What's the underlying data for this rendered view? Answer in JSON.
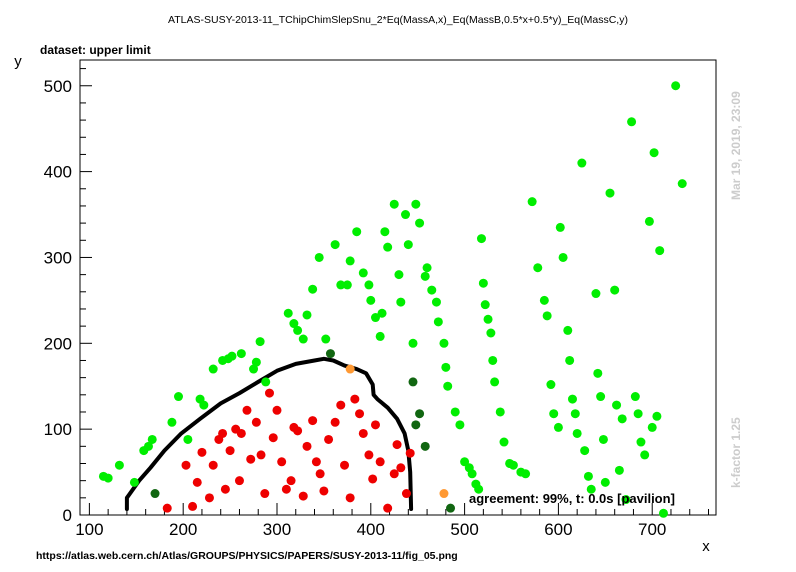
{
  "chart_data": {
    "type": "scatter",
    "title": "ATLAS-SUSY-2013-11_TChipChimSlepSnu_2*Eq(MassA,x)_Eq(MassB,0.5*x+0.5*y)_Eq(MassC,y)",
    "subtitle": "dataset: upper limit",
    "xlabel": "x",
    "ylabel": "y",
    "xlim": [
      90,
      768
    ],
    "ylim": [
      0,
      530
    ],
    "xticks": [
      100,
      200,
      300,
      400,
      500,
      600,
      700
    ],
    "yticks": [
      0,
      100,
      200,
      300,
      400,
      500
    ],
    "grid": false,
    "side_labels": {
      "timestamp": "Mar 19, 2019, 23:09",
      "kfactor": "k-factor 1.25"
    },
    "footer": "https://atlas.web.cern.ch/Atlas/GROUPS/PHYSICS/PAPERS/SUSY-2013-11/fig_05.png",
    "annotation": "agreement: 99%, t: 0.0s [pavilion]",
    "colors": {
      "allowed": "#00ee00",
      "excluded": "#ee0000",
      "allowed_disagree": "#116611",
      "excluded_disagree": "#ff9933",
      "contour": "#000000"
    },
    "series": [
      {
        "name": "allowed",
        "points": [
          [
            115,
            45
          ],
          [
            120,
            43
          ],
          [
            132,
            58
          ],
          [
            148,
            38
          ],
          [
            158,
            75
          ],
          [
            163,
            80
          ],
          [
            167,
            88
          ],
          [
            188,
            108
          ],
          [
            195,
            138
          ],
          [
            205,
            88
          ],
          [
            218,
            135
          ],
          [
            222,
            128
          ],
          [
            232,
            170
          ],
          [
            242,
            180
          ],
          [
            248,
            182
          ],
          [
            252,
            185
          ],
          [
            262,
            188
          ],
          [
            275,
            170
          ],
          [
            278,
            178
          ],
          [
            282,
            202
          ],
          [
            288,
            155
          ],
          [
            312,
            235
          ],
          [
            318,
            223
          ],
          [
            322,
            215
          ],
          [
            328,
            205
          ],
          [
            332,
            233
          ],
          [
            338,
            263
          ],
          [
            345,
            300
          ],
          [
            352,
            205
          ],
          [
            362,
            315
          ],
          [
            368,
            268
          ],
          [
            375,
            268
          ],
          [
            378,
            296
          ],
          [
            385,
            330
          ],
          [
            392,
            282
          ],
          [
            398,
            268
          ],
          [
            400,
            250
          ],
          [
            405,
            230
          ],
          [
            410,
            208
          ],
          [
            412,
            235
          ],
          [
            415,
            330
          ],
          [
            418,
            312
          ],
          [
            425,
            362
          ],
          [
            430,
            280
          ],
          [
            432,
            248
          ],
          [
            437,
            350
          ],
          [
            440,
            315
          ],
          [
            445,
            200
          ],
          [
            448,
            362
          ],
          [
            452,
            340
          ],
          [
            458,
            278
          ],
          [
            460,
            288
          ],
          [
            465,
            262
          ],
          [
            470,
            248
          ],
          [
            472,
            225
          ],
          [
            478,
            200
          ],
          [
            480,
            172
          ],
          [
            482,
            150
          ],
          [
            490,
            120
          ],
          [
            495,
            105
          ],
          [
            500,
            62
          ],
          [
            505,
            55
          ],
          [
            508,
            48
          ],
          [
            512,
            36
          ],
          [
            515,
            30
          ],
          [
            518,
            322
          ],
          [
            520,
            270
          ],
          [
            522,
            245
          ],
          [
            525,
            228
          ],
          [
            528,
            212
          ],
          [
            530,
            180
          ],
          [
            532,
            155
          ],
          [
            538,
            120
          ],
          [
            542,
            85
          ],
          [
            548,
            60
          ],
          [
            552,
            58
          ],
          [
            560,
            50
          ],
          [
            565,
            48
          ],
          [
            572,
            365
          ],
          [
            578,
            288
          ],
          [
            585,
            250
          ],
          [
            588,
            232
          ],
          [
            592,
            152
          ],
          [
            595,
            118
          ],
          [
            600,
            102
          ],
          [
            602,
            335
          ],
          [
            605,
            300
          ],
          [
            610,
            215
          ],
          [
            612,
            180
          ],
          [
            615,
            135
          ],
          [
            618,
            118
          ],
          [
            620,
            95
          ],
          [
            625,
            410
          ],
          [
            628,
            75
          ],
          [
            632,
            45
          ],
          [
            635,
            30
          ],
          [
            640,
            258
          ],
          [
            642,
            165
          ],
          [
            645,
            138
          ],
          [
            648,
            88
          ],
          [
            650,
            38
          ],
          [
            655,
            375
          ],
          [
            660,
            262
          ],
          [
            662,
            128
          ],
          [
            665,
            52
          ],
          [
            668,
            112
          ],
          [
            672,
            18
          ],
          [
            678,
            458
          ],
          [
            682,
            138
          ],
          [
            685,
            118
          ],
          [
            688,
            85
          ],
          [
            692,
            70
          ],
          [
            697,
            342
          ],
          [
            700,
            102
          ],
          [
            702,
            422
          ],
          [
            705,
            115
          ],
          [
            708,
            308
          ],
          [
            712,
            2
          ],
          [
            725,
            500
          ],
          [
            732,
            386
          ]
        ]
      },
      {
        "name": "excluded",
        "points": [
          [
            183,
            8
          ],
          [
            203,
            58
          ],
          [
            210,
            10
          ],
          [
            215,
            38
          ],
          [
            220,
            73
          ],
          [
            228,
            20
          ],
          [
            232,
            58
          ],
          [
            238,
            88
          ],
          [
            242,
            95
          ],
          [
            245,
            30
          ],
          [
            250,
            75
          ],
          [
            256,
            100
          ],
          [
            260,
            40
          ],
          [
            262,
            95
          ],
          [
            268,
            122
          ],
          [
            272,
            65
          ],
          [
            278,
            108
          ],
          [
            283,
            70
          ],
          [
            287,
            25
          ],
          [
            292,
            142
          ],
          [
            296,
            90
          ],
          [
            300,
            122
          ],
          [
            305,
            62
          ],
          [
            310,
            30
          ],
          [
            315,
            40
          ],
          [
            318,
            102
          ],
          [
            322,
            98
          ],
          [
            328,
            22
          ],
          [
            332,
            80
          ],
          [
            338,
            110
          ],
          [
            342,
            62
          ],
          [
            346,
            48
          ],
          [
            350,
            28
          ],
          [
            355,
            88
          ],
          [
            362,
            108
          ],
          [
            368,
            128
          ],
          [
            372,
            58
          ],
          [
            378,
            20
          ],
          [
            383,
            135
          ],
          [
            388,
            118
          ],
          [
            392,
            95
          ],
          [
            398,
            70
          ],
          [
            402,
            42
          ],
          [
            405,
            105
          ],
          [
            410,
            62
          ],
          [
            418,
            8
          ],
          [
            425,
            48
          ],
          [
            428,
            82
          ],
          [
            432,
            55
          ],
          [
            438,
            25
          ],
          [
            442,
            72
          ]
        ]
      },
      {
        "name": "allowed_disagree",
        "points": [
          [
            170,
            25
          ],
          [
            357,
            188
          ],
          [
            445,
            155
          ],
          [
            448,
            105
          ],
          [
            452,
            118
          ],
          [
            458,
            80
          ],
          [
            485,
            8
          ]
        ]
      },
      {
        "name": "excluded_disagree",
        "points": [
          [
            378,
            170
          ],
          [
            478,
            25
          ]
        ]
      }
    ],
    "contour": [
      [
        140,
        7
      ],
      [
        140,
        20
      ],
      [
        153,
        40
      ],
      [
        165,
        55
      ],
      [
        180,
        75
      ],
      [
        198,
        95
      ],
      [
        218,
        112
      ],
      [
        240,
        130
      ],
      [
        260,
        142
      ],
      [
        280,
        155
      ],
      [
        300,
        168
      ],
      [
        320,
        176
      ],
      [
        340,
        180
      ],
      [
        350,
        182
      ],
      [
        360,
        180
      ],
      [
        372,
        174
      ],
      [
        385,
        170
      ],
      [
        395,
        165
      ],
      [
        402,
        152
      ],
      [
        403,
        140
      ],
      [
        407,
        135
      ],
      [
        418,
        125
      ],
      [
        428,
        112
      ],
      [
        436,
        95
      ],
      [
        440,
        75
      ],
      [
        442,
        50
      ],
      [
        443,
        7
      ]
    ]
  }
}
